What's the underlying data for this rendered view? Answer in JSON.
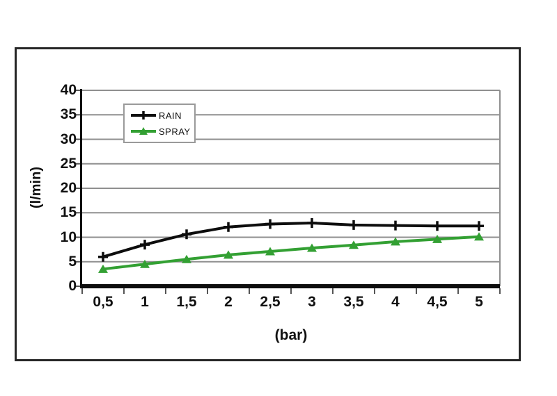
{
  "chart_data": {
    "type": "line",
    "title": "",
    "xlabel": "(bar)",
    "ylabel": "(l/min)",
    "categories": [
      "0,5",
      "1",
      "1,5",
      "2",
      "2,5",
      "3",
      "3,5",
      "4",
      "4,5",
      "5"
    ],
    "x_values": [
      0.5,
      1,
      1.5,
      2,
      2.5,
      3,
      3.5,
      4,
      4.5,
      5
    ],
    "y_ticks": [
      "0",
      "5",
      "10",
      "15",
      "20",
      "25",
      "30",
      "35",
      "40"
    ],
    "ylim": [
      0,
      40
    ],
    "grid": "horizontal-only",
    "legend_position": "top-left-inside",
    "series": [
      {
        "name": "RAIN",
        "color": "#0d0d0d",
        "marker": "plus",
        "values": [
          6,
          8.5,
          10.6,
          12.1,
          12.7,
          12.9,
          12.5,
          12.4,
          12.3,
          12.3
        ]
      },
      {
        "name": "SPRAY",
        "color": "#33a033",
        "marker": "triangle",
        "values": [
          3.5,
          4.5,
          5.5,
          6.4,
          7.1,
          7.8,
          8.4,
          9.1,
          9.6,
          10.1
        ]
      }
    ]
  },
  "colors": {
    "frame_border": "#262626",
    "gridline": "#8f8f8f",
    "axis": "#0d0d0d",
    "tick": "#555555",
    "text": "#111111",
    "background": "#ffffff"
  }
}
